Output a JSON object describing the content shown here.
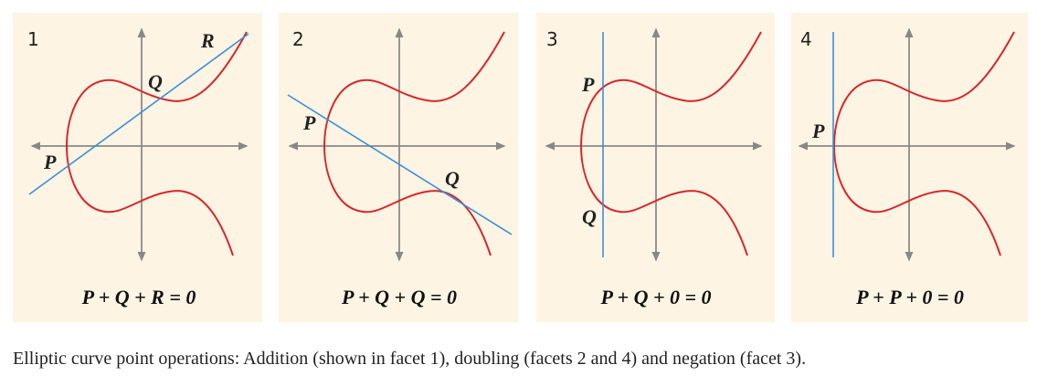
{
  "panels": [
    {
      "number": "1",
      "points": [
        "P",
        "Q",
        "R"
      ],
      "equation": "P + Q + R = 0"
    },
    {
      "number": "2",
      "points": [
        "P",
        "Q"
      ],
      "equation": "P + Q + Q = 0"
    },
    {
      "number": "3",
      "points": [
        "P",
        "Q"
      ],
      "equation": "P + Q + 0 = 0"
    },
    {
      "number": "4",
      "points": [
        "P"
      ],
      "equation": "P + P + 0 = 0"
    }
  ],
  "caption": "Elliptic curve point operations: Addition (shown in facet 1), doubling (facets 2 and 4) and negation (facet 3)."
}
